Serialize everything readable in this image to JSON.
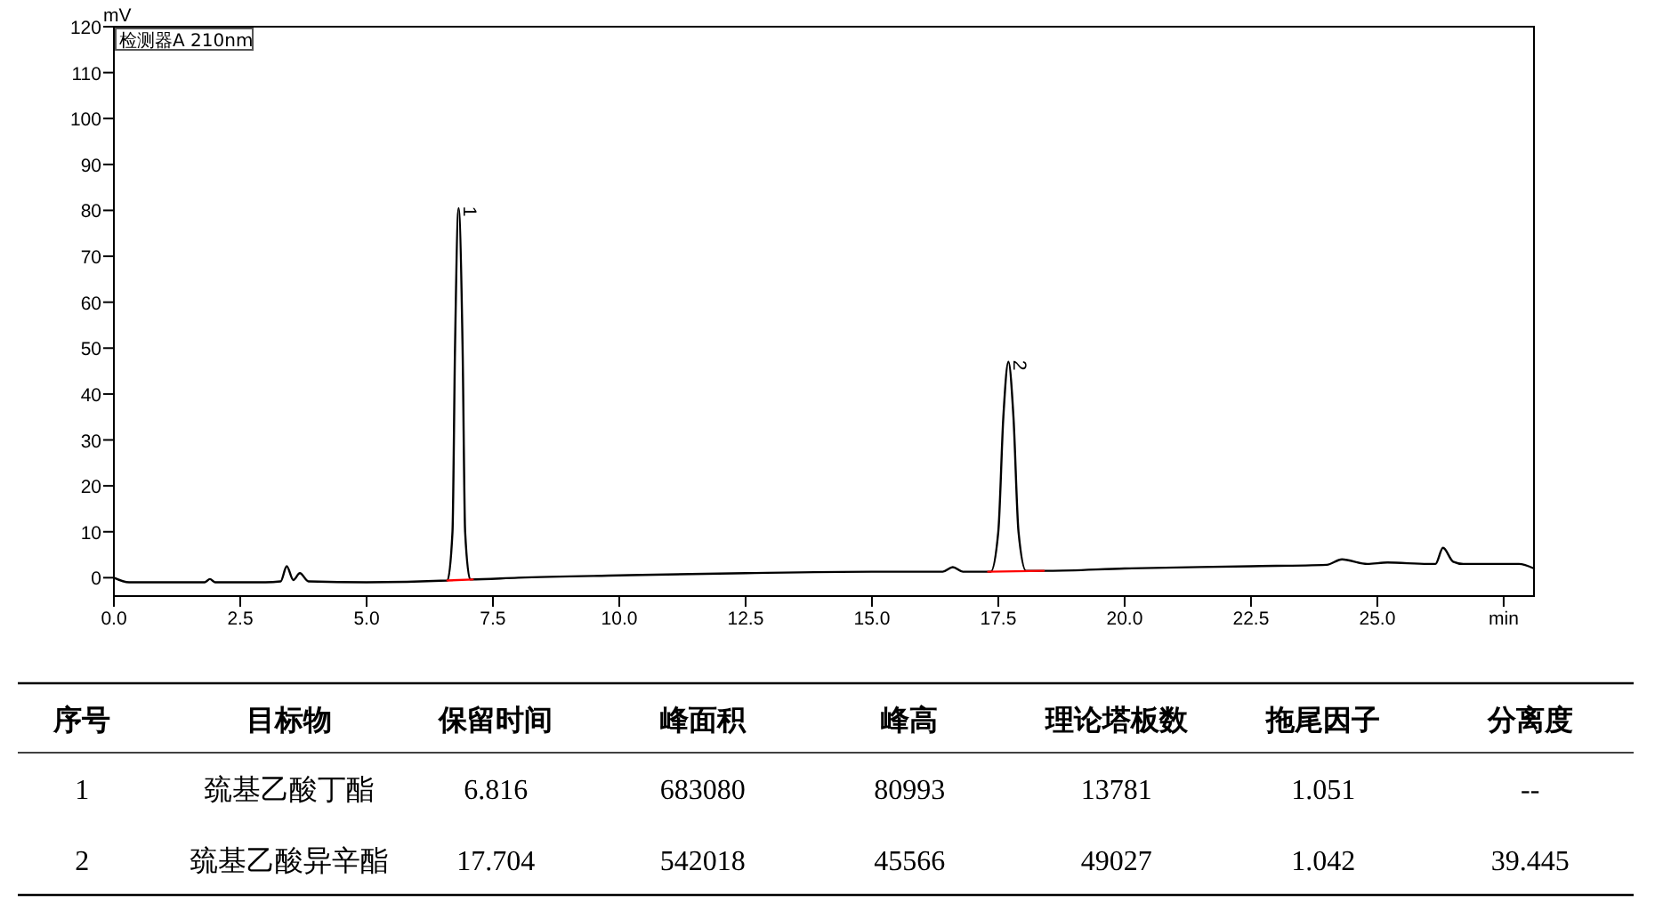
{
  "chart_data": [
    {
      "type": "line",
      "ylabel": "mV",
      "xlim": [
        0,
        28.1
      ],
      "ylim": [
        -4,
        120
      ],
      "xticks": [
        {
          "value": 0,
          "label": "0.0"
        },
        {
          "value": 2.5,
          "label": "2.5"
        },
        {
          "value": 5,
          "label": "5.0"
        },
        {
          "value": 7.5,
          "label": "7.5"
        },
        {
          "value": 10,
          "label": "10.0"
        },
        {
          "value": 12.5,
          "label": "12.5"
        },
        {
          "value": 15,
          "label": "15.0"
        },
        {
          "value": 17.5,
          "label": "17.5"
        },
        {
          "value": 20,
          "label": "20.0"
        },
        {
          "value": 22.5,
          "label": "22.5"
        },
        {
          "value": 25,
          "label": "25.0"
        },
        {
          "value": 27.5,
          "label": "min"
        }
      ],
      "yticks": [
        0,
        10,
        20,
        30,
        40,
        50,
        60,
        70,
        80,
        90,
        100,
        110,
        120
      ],
      "grid": false,
      "annotations": [
        "检测器A 210nm",
        {
          "text": "1",
          "x": 6.82,
          "y": 80.5
        },
        {
          "text": "2",
          "x": 17.7,
          "y": 47
        }
      ],
      "series": [
        {
          "color": "#000000",
          "x": [
            0,
            0.3,
            1,
            1.8,
            1.9,
            2,
            3,
            3.3,
            3.42,
            3.55,
            3.68,
            3.85,
            5,
            6.6,
            6.7,
            6.75,
            6.82,
            6.9,
            6.95,
            7.05,
            8,
            10,
            12.5,
            15,
            16.4,
            16.6,
            16.8,
            17.35,
            17.5,
            17.6,
            17.7,
            17.8,
            17.9,
            18.05,
            18.5,
            20,
            22.5,
            24,
            24.3,
            24.8,
            25.2,
            26,
            26.15,
            26.3,
            26.5,
            26.7,
            27.8,
            28.1
          ],
          "values": [
            0,
            -1,
            -1,
            -1,
            -0.3,
            -1,
            -1,
            -0.8,
            2.5,
            -0.5,
            1,
            -0.8,
            -1,
            -0.6,
            10,
            50,
            80.5,
            50,
            10,
            -0.4,
            0,
            0.5,
            1,
            1.3,
            1.3,
            2.3,
            1.3,
            1.3,
            10,
            35,
            47,
            35,
            10,
            1.5,
            1.5,
            2,
            2.5,
            2.8,
            4,
            3,
            3.3,
            3,
            3,
            6.5,
            3.5,
            3,
            3,
            2
          ]
        },
        {
          "color": "#ff0000",
          "x": [
            6.6,
            7.1
          ],
          "values": [
            -0.6,
            -0.4
          ]
        },
        {
          "color": "#ff0000",
          "x": [
            17.3,
            18.4
          ],
          "values": [
            1.3,
            1.5
          ]
        }
      ]
    },
    {
      "type": "other",
      "categories": [
        "序号",
        "目标物",
        "保留时间",
        "峰面积",
        "峰高",
        "理论塔板数",
        "拖尾因子",
        "分离度"
      ],
      "cells": [
        [
          "1",
          "巯基乙酸丁酯",
          "6.816",
          "683080",
          "80993",
          "13781",
          "1.051",
          "--"
        ],
        [
          "2",
          "巯基乙酸异辛酯",
          "17.704",
          "542018",
          "45566",
          "49027",
          "1.042",
          "39.445"
        ]
      ]
    }
  ]
}
